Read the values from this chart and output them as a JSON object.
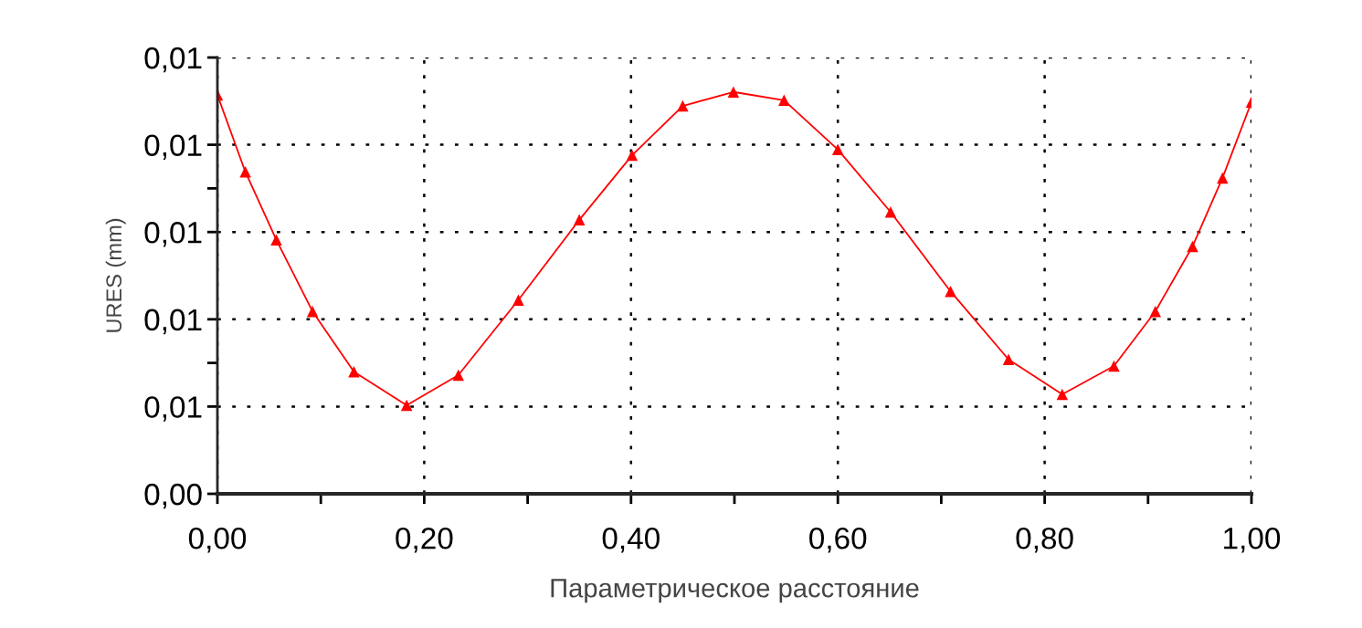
{
  "chart_data": {
    "type": "line",
    "xlabel": "Параметрическое расстояние",
    "ylabel": "URES (mm)",
    "x": [
      0,
      0.027,
      0.057,
      0.092,
      0.132,
      0.183,
      0.233,
      0.291,
      0.35,
      0.401,
      0.45,
      0.499,
      0.548,
      0.6,
      0.651,
      0.709,
      0.765,
      0.817,
      0.867,
      0.907,
      0.943,
      0.972,
      1.0
    ],
    "series": [
      {
        "color": "#ff0000",
        "values": [
          0.01314,
          0.01138,
          0.00982,
          0.00818,
          0.0068,
          0.00603,
          0.00672,
          0.00844,
          0.01028,
          0.01176,
          0.01289,
          0.01321,
          0.01302,
          0.01189,
          0.01046,
          0.00864,
          0.00708,
          0.00628,
          0.00693,
          0.00818,
          0.00967,
          0.01124,
          0.01298
        ]
      }
    ],
    "xlim": [
      0,
      1.0
    ],
    "xticks": [
      {
        "value": 0,
        "label": "0,00"
      },
      {
        "value": 0.1,
        "label": null
      },
      {
        "value": 0.2,
        "label": "0,20"
      },
      {
        "value": 0.3,
        "label": null
      },
      {
        "value": 0.4,
        "label": "0,40"
      },
      {
        "value": 0.5,
        "label": null
      },
      {
        "value": 0.6,
        "label": "0,60"
      },
      {
        "value": 0.7,
        "label": null
      },
      {
        "value": 0.8,
        "label": "0,80"
      },
      {
        "value": 0.9,
        "label": null
      },
      {
        "value": 1.0,
        "label": "1,00"
      }
    ],
    "ylim": [
      0.004,
      0.014
    ],
    "yticks": [
      {
        "value": 0.004,
        "label": "0,00"
      },
      {
        "value": 0.006,
        "label": "0,01"
      },
      {
        "value": 0.007,
        "label": null
      },
      {
        "value": 0.008,
        "label": "0,01"
      },
      {
        "value": 0.01,
        "label": "0,01"
      },
      {
        "value": 0.011,
        "label": null
      },
      {
        "value": 0.012,
        "label": "0,01"
      },
      {
        "value": 0.014,
        "label": "0,01"
      }
    ],
    "grid": true,
    "marker": "triangle",
    "line_style": "solid",
    "legend": false
  }
}
